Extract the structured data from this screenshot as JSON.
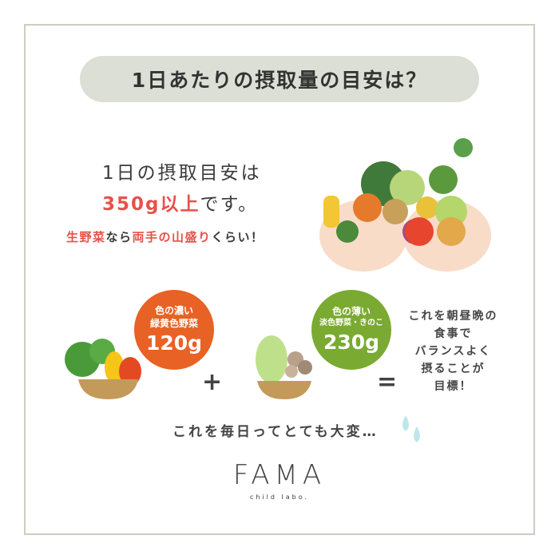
{
  "title": "1日あたりの摂取量の目安は？",
  "intro": {
    "line1": "1日の摂取目安は",
    "amount": "350g以上",
    "amount_suffix": "です。",
    "hint_a": "生野菜",
    "hint_b": "なら",
    "hint_c": "両手の山盛り",
    "hint_d": "くらい！"
  },
  "dark_veg": {
    "line1": "色の濃い",
    "line2": "緑黄色野菜",
    "amount": "120g",
    "color": "#e76224"
  },
  "light_veg": {
    "line1": "色の薄い",
    "line2": "淡色野菜・きのこ",
    "amount": "230g",
    "color": "#7aaa31"
  },
  "plus": "+",
  "equals": "=",
  "goal": [
    "これを朝昼晩の",
    "食事で",
    "バランスよく",
    "摂ることが",
    "目標！"
  ],
  "footer": "これを毎日ってとても大変…",
  "logo": {
    "name": "FAMA",
    "sub": "child labo."
  }
}
